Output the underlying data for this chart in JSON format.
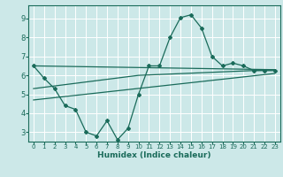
{
  "title": "",
  "xlabel": "Humidex (Indice chaleur)",
  "background_color": "#cce8e8",
  "grid_color": "#ffffff",
  "line_color": "#1a6b5a",
  "xlim": [
    -0.5,
    23.5
  ],
  "ylim": [
    2.5,
    9.7
  ],
  "yticks": [
    3,
    4,
    5,
    6,
    7,
    8,
    9
  ],
  "xticks": [
    0,
    1,
    2,
    3,
    4,
    5,
    6,
    7,
    8,
    9,
    10,
    11,
    12,
    13,
    14,
    15,
    16,
    17,
    18,
    19,
    20,
    21,
    22,
    23
  ],
  "series1_x": [
    0,
    1,
    2,
    3,
    4,
    5,
    6,
    7,
    8,
    9,
    10,
    11,
    12,
    13,
    14,
    15,
    16,
    17,
    18,
    19,
    20,
    21,
    22,
    23
  ],
  "series1_y": [
    6.5,
    5.85,
    5.3,
    4.4,
    4.2,
    3.0,
    2.8,
    3.6,
    2.6,
    3.2,
    5.0,
    6.5,
    6.5,
    8.0,
    9.05,
    9.2,
    8.5,
    7.0,
    6.5,
    6.65,
    6.5,
    6.25,
    6.25,
    6.25
  ],
  "line2_x": [
    0,
    23
  ],
  "line2_y": [
    6.5,
    6.3
  ],
  "line3_x": [
    0,
    10,
    23
  ],
  "line3_y": [
    5.3,
    6.0,
    6.3
  ],
  "line4_x": [
    0,
    23
  ],
  "line4_y": [
    4.7,
    6.1
  ]
}
